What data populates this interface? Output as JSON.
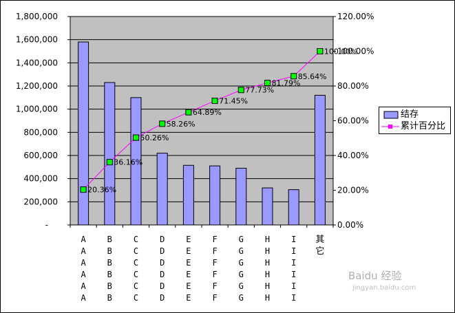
{
  "chart_data": {
    "type": "bar",
    "categories": [
      [
        "A",
        "A",
        "A",
        "A",
        "A",
        "A"
      ],
      [
        "B",
        "B",
        "B",
        "B",
        "B",
        "B"
      ],
      [
        "C",
        "C",
        "C",
        "C",
        "C",
        "C"
      ],
      [
        "D",
        "D",
        "D",
        "D",
        "D",
        "D"
      ],
      [
        "E",
        "E",
        "E",
        "E",
        "E",
        "E"
      ],
      [
        "F",
        "F",
        "F",
        "F",
        "F",
        "F"
      ],
      [
        "G",
        "G",
        "G",
        "G",
        "G",
        "G"
      ],
      [
        "H",
        "H",
        "H",
        "H",
        "H",
        "H"
      ],
      [
        "I",
        "I",
        "I",
        "I",
        "I",
        "I"
      ],
      [
        "其",
        "它"
      ]
    ],
    "series": [
      {
        "name": "结存",
        "type": "bar",
        "axis": "left",
        "color": "#9999ff",
        "values": [
          1580000,
          1230000,
          1100000,
          620000,
          515000,
          510000,
          490000,
          320000,
          305000,
          1120000
        ]
      },
      {
        "name": "累计百分比",
        "type": "line",
        "axis": "right",
        "color": "#ff00ff",
        "marker_color": "#00ff00",
        "values": [
          20.36,
          36.16,
          50.26,
          58.26,
          64.89,
          71.45,
          77.73,
          81.79,
          85.64,
          100.0
        ],
        "labels": [
          "20.36%",
          "36.16%",
          "50.26%",
          "58.26%",
          "64.89%",
          "71.45%",
          "77.73%",
          "81.79%",
          "85.64%",
          "100.00%"
        ]
      }
    ],
    "y_left": {
      "ylim": [
        0,
        1800000
      ],
      "ticks": [
        "-",
        "200,000",
        "400,000",
        "600,000",
        "800,000",
        "1,000,000",
        "1,200,000",
        "1,400,000",
        "1,600,000",
        "1,800,000"
      ]
    },
    "y_right": {
      "ylim": [
        0,
        120
      ],
      "ticks": [
        "0.00%",
        "20.00%",
        "40.00%",
        "60.00%",
        "80.00%",
        "100.00%",
        "120.00%"
      ]
    },
    "plot_background": "#c0c0c0",
    "grid": true,
    "legend_position": "right"
  },
  "watermark": {
    "line1": "Baidu 经验",
    "line2": "jingyan.baidu.com"
  }
}
